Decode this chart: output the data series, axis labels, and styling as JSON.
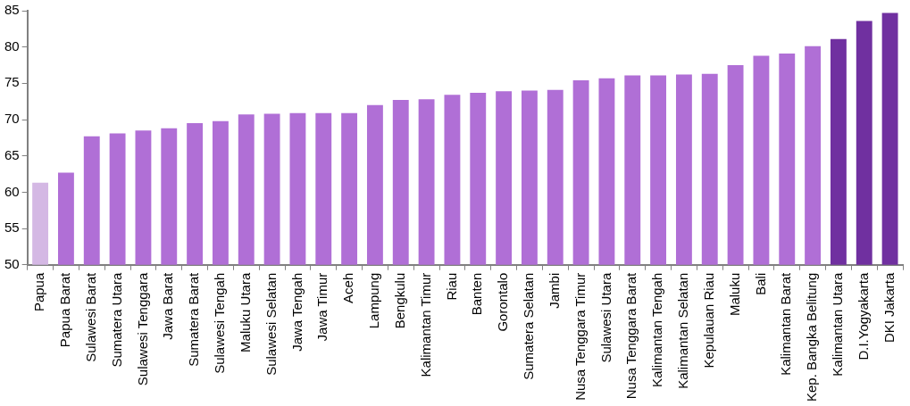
{
  "chart_data": {
    "type": "bar",
    "categories": [
      "Papua",
      "Papua Barat",
      "Sulawesi Barat",
      "Sumatera Utara",
      "Sulawesi Tenggara",
      "Jawa Barat",
      "Sumatera Barat",
      "Sulawesi Tengah",
      "Maluku Utara",
      "Sulawesi Selatan",
      "Jawa Tengah",
      "Jawa Timur",
      "Aceh",
      "Lampung",
      "Bengkulu",
      "Kalimantan Timur",
      "Riau",
      "Banten",
      "Gorontalo",
      "Sumatera Selatan",
      "Jambi",
      "Nusa Tenggara Timur",
      "Sulawesi Utara",
      "Nusa Tenggara Barat",
      "Kalimantan Tengah",
      "Kalimantan Selatan",
      "Kepulauan Riau",
      "Maluku",
      "Bali",
      "Kalimantan Barat",
      "Kep. Bangka Belitung",
      "Kalimantan Utara",
      "D.I.Yogyakarta",
      "DKI Jakarta"
    ],
    "values": [
      61.3,
      62.7,
      67.7,
      68.1,
      68.5,
      68.8,
      69.5,
      69.8,
      70.7,
      70.8,
      70.9,
      70.9,
      70.9,
      72.0,
      72.7,
      72.8,
      73.4,
      73.7,
      73.9,
      74.0,
      74.1,
      75.4,
      75.7,
      76.1,
      76.1,
      76.2,
      76.3,
      77.5,
      78.8,
      79.1,
      80.1,
      81.1,
      83.6,
      84.7
    ],
    "colors": [
      "#d4b8e4",
      "#b06fd6",
      "#b06fd6",
      "#b06fd6",
      "#b06fd6",
      "#b06fd6",
      "#b06fd6",
      "#b06fd6",
      "#b06fd6",
      "#b06fd6",
      "#b06fd6",
      "#b06fd6",
      "#b06fd6",
      "#b06fd6",
      "#b06fd6",
      "#b06fd6",
      "#b06fd6",
      "#b06fd6",
      "#b06fd6",
      "#b06fd6",
      "#b06fd6",
      "#b06fd6",
      "#b06fd6",
      "#b06fd6",
      "#b06fd6",
      "#b06fd6",
      "#b06fd6",
      "#b06fd6",
      "#b06fd6",
      "#b06fd6",
      "#b06fd6",
      "#7030a0",
      "#7030a0",
      "#7030a0"
    ],
    "ylim": [
      50,
      85
    ],
    "yticks": [
      50,
      55,
      60,
      65,
      70,
      75,
      80,
      85
    ],
    "grid": false,
    "legend": false
  }
}
